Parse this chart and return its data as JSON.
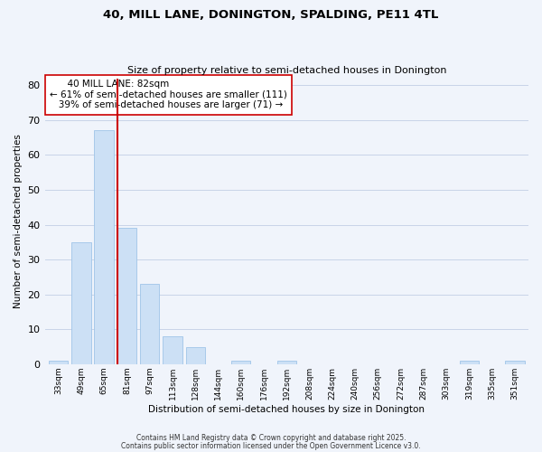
{
  "title": "40, MILL LANE, DONINGTON, SPALDING, PE11 4TL",
  "subtitle": "Size of property relative to semi-detached houses in Donington",
  "xlabel": "Distribution of semi-detached houses by size in Donington",
  "ylabel": "Number of semi-detached properties",
  "bar_labels": [
    "33sqm",
    "49sqm",
    "65sqm",
    "81sqm",
    "97sqm",
    "113sqm",
    "128sqm",
    "144sqm",
    "160sqm",
    "176sqm",
    "192sqm",
    "208sqm",
    "224sqm",
    "240sqm",
    "256sqm",
    "272sqm",
    "287sqm",
    "303sqm",
    "319sqm",
    "335sqm",
    "351sqm"
  ],
  "bar_values": [
    1,
    35,
    67,
    39,
    23,
    8,
    5,
    0,
    1,
    0,
    1,
    0,
    0,
    0,
    0,
    0,
    0,
    0,
    1,
    0,
    1
  ],
  "bar_color": "#cce0f5",
  "bar_edge_color": "#a0c4e8",
  "highlight_bar_index": 3,
  "highlight_color": "#cc0000",
  "property_size": "82sqm",
  "pct_smaller": 61,
  "n_smaller": 111,
  "pct_larger": 39,
  "n_larger": 71,
  "annotation_label": "40 MILL LANE: 82sqm",
  "ylim": [
    0,
    82
  ],
  "yticks": [
    0,
    10,
    20,
    30,
    40,
    50,
    60,
    70,
    80
  ],
  "bg_color": "#f0f4fb",
  "grid_color": "#c8d4e8",
  "footer1": "Contains HM Land Registry data © Crown copyright and database right 2025.",
  "footer2": "Contains public sector information licensed under the Open Government Licence v3.0."
}
